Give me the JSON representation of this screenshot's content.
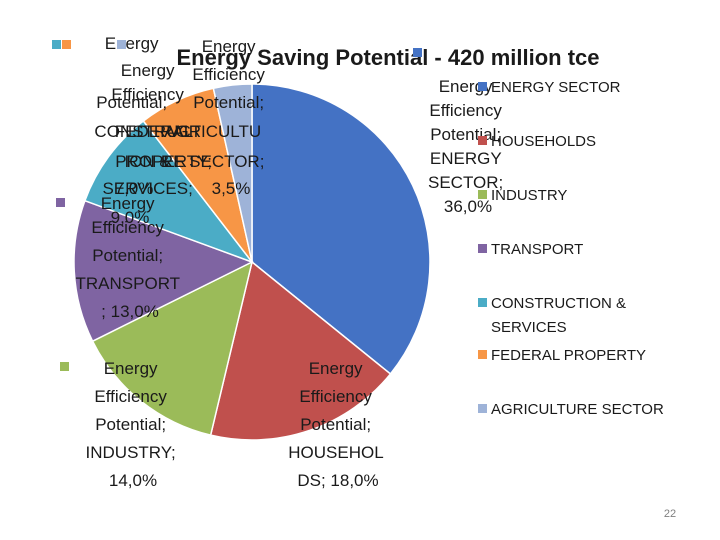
{
  "chart_data": {
    "type": "pie",
    "title": "Energy Saving Potential - 420 million tce",
    "label_prefix": "Energy Efficiency Potential",
    "categories": [
      "ENERGY SECTOR",
      "HOUSEHOLDS",
      "INDUSTRY",
      "TRANSPORT",
      "CONSTRUCTION & SERVICES",
      "FEDERAL PROPERTY",
      "AGRICULTURE SECTOR"
    ],
    "values": [
      36.0,
      18.0,
      14.0,
      13.0,
      9.0,
      7.0,
      3.5
    ],
    "value_labels": [
      "36,0%",
      "18,0%",
      "14,0%",
      "13,0%",
      "9,0%",
      "7,0%",
      "3,5%"
    ],
    "data_labels": [
      "Energy Efficiency Potential; ENERGY SECTOR; 36,0%",
      "Energy Efficiency Potential; HOUSEHOLDS; 18,0%",
      "Energy Efficiency Potential; INDUSTRY; 14,0%",
      "Energy Efficiency Potential; TRANSPORT ; 13,0%",
      "Energy Efficiency Potential; CONSTRUCTION & SERVICES; 9,0%",
      "Energy Efficiency Potential; FEDERAL PROPERTY; 7,0%",
      "Energy Efficiency Potential; AGRICULTURE SECTOR; 3,5%"
    ],
    "colors": [
      "#4472c4",
      "#c0504d",
      "#9bbb59",
      "#7f64a2",
      "#4bacc6",
      "#f79646",
      "#9eb3d8"
    ],
    "legend_position": "right"
  },
  "page_number": "22"
}
